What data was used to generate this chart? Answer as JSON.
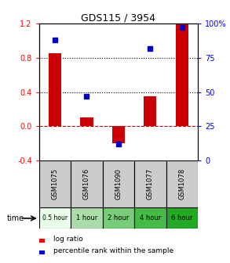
{
  "title": "GDS115 / 3954",
  "samples": [
    "GSM1075",
    "GSM1076",
    "GSM1090",
    "GSM1077",
    "GSM1078"
  ],
  "time_labels": [
    "0.5 hour",
    "1 hour",
    "2 hour",
    "4 hour",
    "6 hour"
  ],
  "time_colors": [
    "#e8ffe8",
    "#aaddaa",
    "#77cc77",
    "#44bb44",
    "#22aa22"
  ],
  "log_ratio": [
    0.85,
    0.1,
    -0.2,
    0.35,
    1.2
  ],
  "percentile": [
    88,
    47,
    12,
    82,
    97
  ],
  "bar_color": "#cc0000",
  "dot_color": "#0000cc",
  "ylim_left": [
    -0.4,
    1.2
  ],
  "ylim_right": [
    0,
    100
  ],
  "yticks_left": [
    -0.4,
    0.0,
    0.4,
    0.8,
    1.2
  ],
  "yticks_right": [
    0,
    25,
    50,
    75,
    100
  ],
  "ytick_labels_right": [
    "0",
    "25",
    "50",
    "75",
    "100%"
  ],
  "hline_vals": [
    0.0,
    0.4,
    0.8
  ],
  "hline_styles": [
    "--",
    ":",
    ":"
  ],
  "hline_colors": [
    "#cc0000",
    "#000000",
    "#000000"
  ],
  "bar_width": 0.4,
  "sample_bg": "#cccccc",
  "legend_log_ratio": "log ratio",
  "legend_percentile": "percentile rank within the sample"
}
